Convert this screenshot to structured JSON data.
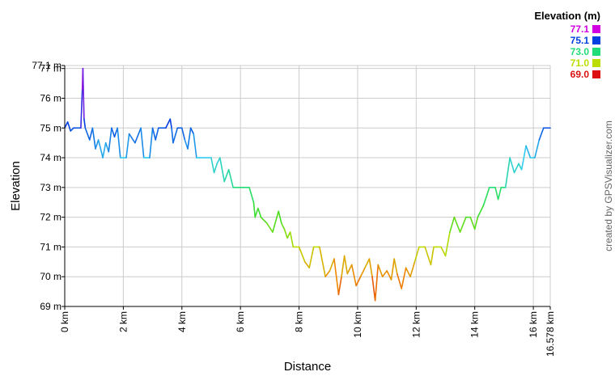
{
  "chart_data": {
    "type": "line",
    "title": "",
    "xlabel": "Distance",
    "ylabel": "Elevation",
    "xlim": [
      0,
      16.578
    ],
    "ylim": [
      69,
      77.1
    ],
    "x_ticks": [
      {
        "value": 0,
        "label": "0 km"
      },
      {
        "value": 2,
        "label": "2 km"
      },
      {
        "value": 4,
        "label": "4 km"
      },
      {
        "value": 6,
        "label": "6 km"
      },
      {
        "value": 8,
        "label": "8 km"
      },
      {
        "value": 10,
        "label": "10 km"
      },
      {
        "value": 12,
        "label": "12 km"
      },
      {
        "value": 14,
        "label": "14 km"
      },
      {
        "value": 16,
        "label": "16 km"
      },
      {
        "value": 16.578,
        "label": "16.578 km"
      }
    ],
    "y_ticks": [
      {
        "value": 69,
        "label": "69 m"
      },
      {
        "value": 70,
        "label": "70 m"
      },
      {
        "value": 71,
        "label": "71 m"
      },
      {
        "value": 72,
        "label": "72 m"
      },
      {
        "value": 73,
        "label": "73 m"
      },
      {
        "value": 74,
        "label": "74 m"
      },
      {
        "value": 75,
        "label": "75 m"
      },
      {
        "value": 76,
        "label": "76 m"
      },
      {
        "value": 77,
        "label": "77 m"
      },
      {
        "value": 77.1,
        "label": "77.1 m"
      }
    ],
    "grid": true,
    "series": [
      {
        "x": [
          0,
          0.1,
          0.2,
          0.3,
          0.45,
          0.55,
          0.6,
          0.62,
          0.66,
          0.7,
          0.85,
          0.95,
          1.05,
          1.15,
          1.3,
          1.4,
          1.5,
          1.6,
          1.7,
          1.8,
          1.9,
          2.0,
          2.1,
          2.2,
          2.4,
          2.6,
          2.7,
          2.8,
          2.9,
          3.0,
          3.1,
          3.2,
          3.3,
          3.45,
          3.6,
          3.65,
          3.7,
          3.85,
          4.0,
          4.1,
          4.2,
          4.3,
          4.4,
          4.5,
          4.6,
          4.8,
          5.0,
          5.1,
          5.2,
          5.3,
          5.45,
          5.6,
          5.75,
          5.9,
          6.1,
          6.3,
          6.45,
          6.5,
          6.6,
          6.7,
          6.9,
          7.1,
          7.3,
          7.4,
          7.5,
          7.6,
          7.7,
          7.8,
          7.9,
          8.0,
          8.2,
          8.35,
          8.5,
          8.7,
          8.9,
          9.05,
          9.2,
          9.35,
          9.45,
          9.55,
          9.65,
          9.8,
          9.95,
          10.1,
          10.25,
          10.4,
          10.5,
          10.6,
          10.7,
          10.85,
          11.0,
          11.15,
          11.25,
          11.35,
          11.5,
          11.65,
          11.8,
          11.95,
          12.1,
          12.3,
          12.5,
          12.6,
          12.7,
          12.85,
          13.0,
          13.15,
          13.3,
          13.5,
          13.7,
          13.85,
          14.0,
          14.1,
          14.3,
          14.5,
          14.7,
          14.8,
          14.9,
          15.05,
          15.2,
          15.35,
          15.5,
          15.6,
          15.75,
          15.9,
          16.05,
          16.2,
          16.35,
          16.45,
          16.578
        ],
        "y": [
          75.0,
          75.2,
          74.9,
          75.0,
          75.0,
          75.0,
          76.3,
          77.0,
          75.3,
          75.0,
          74.6,
          75.0,
          74.3,
          74.6,
          74.0,
          74.5,
          74.2,
          75.0,
          74.7,
          75.0,
          74.0,
          74.0,
          74.0,
          74.8,
          74.5,
          75.0,
          74.0,
          74.0,
          74.0,
          75.0,
          74.6,
          75.0,
          75.0,
          75.0,
          75.3,
          75.0,
          74.5,
          75.0,
          75.0,
          74.6,
          74.3,
          75.0,
          74.8,
          74.0,
          74.0,
          74.0,
          74.0,
          73.5,
          73.8,
          74.0,
          73.2,
          73.6,
          73.0,
          73.0,
          73.0,
          73.0,
          72.5,
          72.0,
          72.3,
          72.0,
          71.8,
          71.5,
          72.2,
          71.8,
          71.6,
          71.3,
          71.5,
          71.0,
          71.0,
          71.0,
          70.5,
          70.3,
          71.0,
          71.0,
          70.0,
          70.2,
          70.6,
          69.4,
          70.0,
          70.7,
          70.1,
          70.4,
          69.7,
          70.0,
          70.3,
          70.6,
          70.0,
          69.2,
          70.4,
          70.0,
          70.2,
          69.9,
          70.6,
          70.1,
          69.6,
          70.3,
          70.0,
          70.5,
          71.0,
          71.0,
          70.4,
          71.0,
          71.0,
          71.0,
          70.7,
          71.5,
          72.0,
          71.5,
          72.0,
          72.0,
          71.6,
          72.0,
          72.4,
          73.0,
          73.0,
          72.6,
          73.0,
          73.0,
          74.0,
          73.5,
          73.8,
          73.6,
          74.4,
          74.0,
          74.0,
          74.6,
          75.0,
          75.0,
          75.0
        ]
      }
    ],
    "color_scale": [
      {
        "value": 77.1,
        "color": "#d000e0"
      },
      {
        "value": 75.1,
        "color": "#0040e0"
      },
      {
        "value": 74.0,
        "color": "#33ccee"
      },
      {
        "value": 73.0,
        "color": "#22dd77"
      },
      {
        "value": 72.0,
        "color": "#44dd22"
      },
      {
        "value": 71.0,
        "color": "#bbdd00"
      },
      {
        "value": 70.0,
        "color": "#ee8800"
      },
      {
        "value": 69.0,
        "color": "#dd1111"
      }
    ]
  },
  "legend": {
    "title": "Elevation (m)",
    "items": [
      {
        "label": "77.1",
        "color": "#d000e0"
      },
      {
        "label": "75.1",
        "color": "#0040e0"
      },
      {
        "label": "73.0",
        "color": "#22dd77"
      },
      {
        "label": "71.0",
        "color": "#bbdd00"
      },
      {
        "label": "69.0",
        "color": "#dd1111"
      }
    ]
  },
  "credit": "created by GPSVisualizer.com",
  "colors": {
    "grid": "#cccccc",
    "axis": "#000000",
    "background": "#ffffff"
  }
}
